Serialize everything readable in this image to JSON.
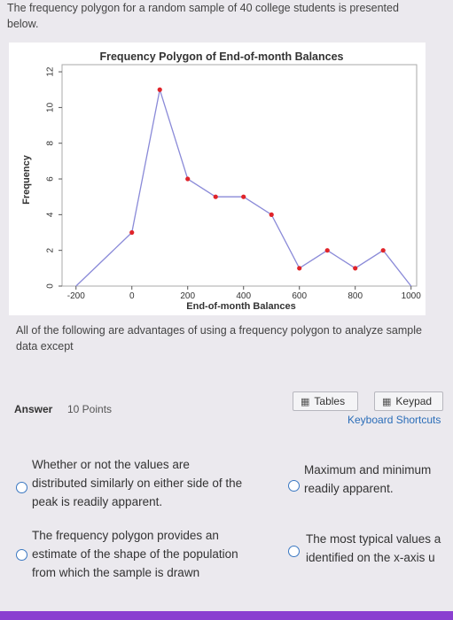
{
  "question": {
    "intro": "The frequency polygon for a random sample of 40 college students is presented below.",
    "prompt": "All of the following are advantages of using a frequency polygon to analyze sample data except"
  },
  "answer": {
    "label": "Answer",
    "points": "10 Points",
    "tables_label": "Tables",
    "keypad_label": "Keypad",
    "keyboard_shortcuts": "Keyboard Shortcuts"
  },
  "options": [
    {
      "lines": [
        "Whether or not the values are",
        "distributed similarly on either side of the",
        "peak is readily apparent."
      ]
    },
    {
      "lines": [
        "Maximum and minimum",
        "readily apparent."
      ]
    },
    {
      "lines": [
        "The frequency polygon provides an",
        "estimate of the shape of the population",
        "from which the sample is drawn"
      ]
    },
    {
      "lines": [
        "The most typical values a",
        "identified on the x-axis u"
      ]
    }
  ],
  "chart_data": {
    "type": "line",
    "title": "Frequency Polygon of End-of-month Balances",
    "xlabel": "End-of-month Balances",
    "ylabel": "Frequency",
    "xlim": [
      -250,
      1020
    ],
    "ylim": [
      0,
      12.4
    ],
    "xticks": [
      -200,
      0,
      200,
      400,
      600,
      800,
      1000
    ],
    "yticks": [
      0,
      2,
      4,
      6,
      8,
      10,
      12
    ],
    "grid": false,
    "line_color": "#8a8ad8",
    "marker_color": "#e0242a",
    "series": [
      {
        "x": [
          -200,
          0,
          100,
          200,
          300,
          400,
          500,
          600,
          700,
          800,
          900,
          1000
        ],
        "y": [
          0,
          3,
          11,
          6,
          5,
          5,
          4,
          1,
          2,
          1,
          2,
          0
        ]
      }
    ]
  }
}
